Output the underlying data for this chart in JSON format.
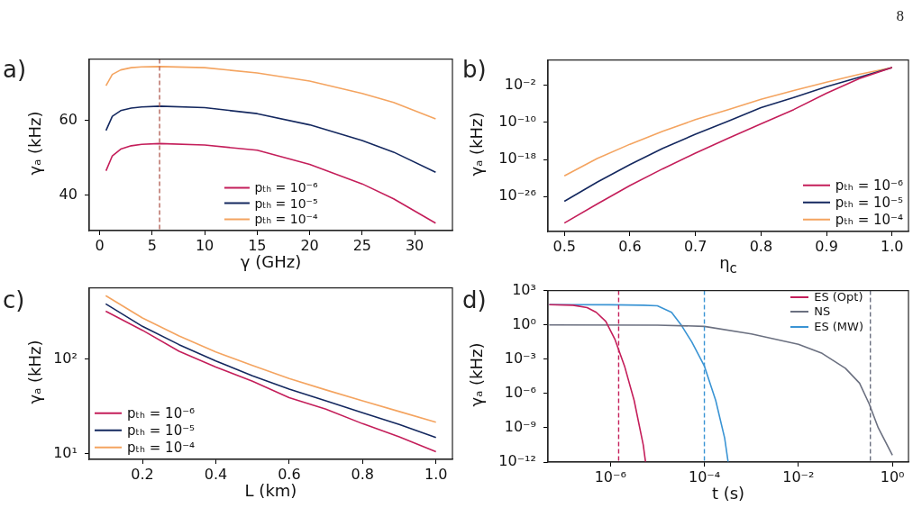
{
  "chart_data": [
    {
      "type": "line",
      "title": "a)",
      "xlabel": "γ (GHz)",
      "ylabel": "γₐ (kHz)",
      "x": [
        0.6,
        1.2,
        2,
        3,
        4,
        5.7,
        10,
        15,
        20,
        25,
        28,
        32
      ],
      "xlim": [
        -1,
        33.6
      ],
      "xticks": [
        0,
        5,
        10,
        15,
        20,
        25,
        30
      ],
      "ylim": [
        30.5,
        76.4
      ],
      "yticks": [
        40,
        60
      ],
      "legend": "bottom",
      "annotations": [
        "8"
      ],
      "ref_lines": [
        {
          "axis": "x",
          "value": 5.7,
          "color": "#b5655a",
          "line_style": "dashed"
        }
      ],
      "series": [
        {
          "name": "pₜₕ = 10⁻⁶",
          "color": "#c41e5a",
          "values": [
            46.5,
            50.5,
            52.3,
            53.2,
            53.6,
            53.8,
            53.4,
            52.0,
            48.2,
            43.0,
            39.0,
            32.5
          ]
        },
        {
          "name": "pₜₕ = 10⁻⁵",
          "color": "#14285f",
          "values": [
            57.3,
            61.1,
            62.6,
            63.3,
            63.6,
            63.8,
            63.4,
            61.8,
            58.8,
            54.6,
            51.5,
            46.1
          ]
        },
        {
          "name": "pₜₕ = 10⁻⁴",
          "color": "#f4a460",
          "values": [
            69.3,
            72.3,
            73.5,
            74.1,
            74.3,
            74.4,
            74.1,
            72.7,
            70.5,
            67.2,
            64.8,
            60.4
          ]
        }
      ]
    },
    {
      "type": "line",
      "title": "b)",
      "xlabel": "η$_{c}$",
      "ylabel": "γₐ (kHz)",
      "log": "y",
      "x": [
        0.5,
        0.55,
        0.6,
        0.65,
        0.7,
        0.75,
        0.8,
        0.85,
        0.9,
        0.95,
        1.0
      ],
      "xlim": [
        0.475,
        1.025
      ],
      "xticks": [
        0.5,
        0.6,
        0.7,
        0.8,
        0.9,
        {
          "value": 1,
          "label": "1.0"
        }
      ],
      "ylim": [
        3e-34,
        3000.0
      ],
      "yticks": [
        {
          "value": 1e-26,
          "label": "10⁻²⁶"
        },
        {
          "value": 1e-18,
          "label": "10⁻¹⁸"
        },
        {
          "value": 1e-10,
          "label": "10⁻¹⁰"
        },
        {
          "value": 0.01,
          "label": "10⁻²"
        }
      ],
      "legend": "bottom right",
      "series": [
        {
          "name": "pₜₕ = 10⁻⁶",
          "color": "#c41e5a",
          "values": [
            2e-32,
            2.5e-28,
            2.5e-24,
            1e-20,
            2.5e-17,
            4e-14,
            5e-11,
            6e-08,
            0.0002,
            0.28,
            69
          ]
        },
        {
          "name": "pₜₕ = 10⁻⁵",
          "color": "#14285f",
          "values": [
            1e-27,
            1.3e-23,
            8e-20,
            2.5e-16,
            3e-13,
            2e-10,
            1.6e-07,
            2.5e-05,
            0.005,
            0.58,
            69
          ]
        },
        {
          "name": "pₜₕ = 10⁻⁴",
          "color": "#f4a460",
          "values": [
            3e-22,
            1.6e-18,
            2e-15,
            1.3e-12,
            4e-10,
            6e-08,
            1e-05,
            0.0008,
            0.05,
            2.5,
            69
          ]
        }
      ]
    },
    {
      "type": "line",
      "title": "c)",
      "xlabel": "L (km)",
      "ylabel": "γₐ (kHz)",
      "log": "y",
      "x": [
        0.1,
        0.2,
        0.3,
        0.4,
        0.5,
        0.6,
        0.7,
        0.8,
        0.9,
        1.0
      ],
      "xlim": [
        0.055,
        1.045
      ],
      "xticks": [
        0.2,
        0.4,
        0.6,
        0.8,
        {
          "value": 1,
          "label": "1.0"
        }
      ],
      "ylim": [
        8.7,
        560
      ],
      "yticks": [
        {
          "value": 10,
          "label": "10¹"
        },
        {
          "value": 100,
          "label": "10²"
        }
      ],
      "legend": "bottom left",
      "series": [
        {
          "name": "pₜₕ = 10⁻⁶",
          "color": "#c41e5a",
          "values": [
            318,
            200,
            120,
            82,
            58,
            39,
            29.5,
            20.7,
            15,
            10.5
          ]
        },
        {
          "name": "pₜₕ = 10⁻⁵",
          "color": "#14285f",
          "values": [
            380,
            220,
            141,
            95,
            66,
            48,
            36,
            27,
            20.3,
            14.8
          ]
        },
        {
          "name": "pₜₕ = 10⁻⁴",
          "color": "#f4a460",
          "values": [
            464,
            270,
            174,
            118,
            85,
            62,
            47,
            36,
            27.8,
            21.4
          ]
        }
      ]
    },
    {
      "type": "line",
      "title": "d)",
      "xlabel": "t (s)",
      "ylabel": "γₐ (kHz)",
      "log": "xy",
      "xlim": [
        4.7e-08,
        2.2
      ],
      "xticks": [
        {
          "value": 1e-06,
          "label": "10⁻⁶"
        },
        {
          "value": 0.0001,
          "label": "10⁻⁴"
        },
        {
          "value": 0.01,
          "label": "10⁻²"
        },
        {
          "value": 1,
          "label": "10⁰"
        }
      ],
      "ylim": [
        1e-12,
        1000.0
      ],
      "yticks": [
        {
          "value": 1e-12,
          "label": "10⁻¹²"
        },
        {
          "value": 1e-09,
          "label": "10⁻⁹"
        },
        {
          "value": 1e-06,
          "label": "10⁻⁶"
        },
        {
          "value": 0.001,
          "label": "10⁻³"
        },
        {
          "value": 1,
          "label": "10⁰"
        },
        {
          "value": 1000.0,
          "label": "10³"
        }
      ],
      "legend": "top right",
      "ref_lines": [
        {
          "axis": "x",
          "value": 1.5e-06,
          "color": "#c41e5a",
          "line_style": "dashed"
        },
        {
          "axis": "x",
          "value": 0.0001,
          "color": "#3a94d4",
          "line_style": "dashed"
        },
        {
          "axis": "x",
          "value": 0.34,
          "color": "#6b7080",
          "line_style": "dashed"
        }
      ],
      "series": [
        {
          "name": "ES (Opt)",
          "color": "#c41e5a",
          "x": [
            5e-08,
            1.6e-07,
            3.2e-07,
            5e-07,
            8e-07,
            1.26e-06,
            2e-06,
            3.2e-06,
            5e-06,
            5.6e-06
          ],
          "values": [
            59,
            52,
            32,
            12.6,
            2,
            0.05,
            0.00025,
            2.5e-07,
            3.2e-11,
            1e-12
          ]
        },
        {
          "name": "NS",
          "color": "#6b7080",
          "x": [
            5e-08,
            1e-05,
            0.0001,
            0.001,
            0.01,
            0.032,
            0.1,
            0.2,
            0.32,
            0.5,
            1
          ],
          "values": [
            1,
            0.95,
            0.74,
            0.16,
            0.02,
            0.0032,
            0.00016,
            8e-06,
            1.26e-07,
            1e-09,
            4e-12
          ]
        },
        {
          "name": "ES (MW)",
          "color": "#3a94d4",
          "x": [
            5e-08,
            1e-06,
            5e-06,
            1e-05,
            2e-05,
            3.2e-05,
            5.4e-05,
            0.0001,
            0.000174,
            0.00027,
            0.00032
          ],
          "values": [
            59,
            57,
            52,
            47,
            12.6,
            1,
            0.032,
            0.00025,
            2.5e-07,
            1.26e-10,
            1e-12
          ]
        }
      ]
    }
  ]
}
